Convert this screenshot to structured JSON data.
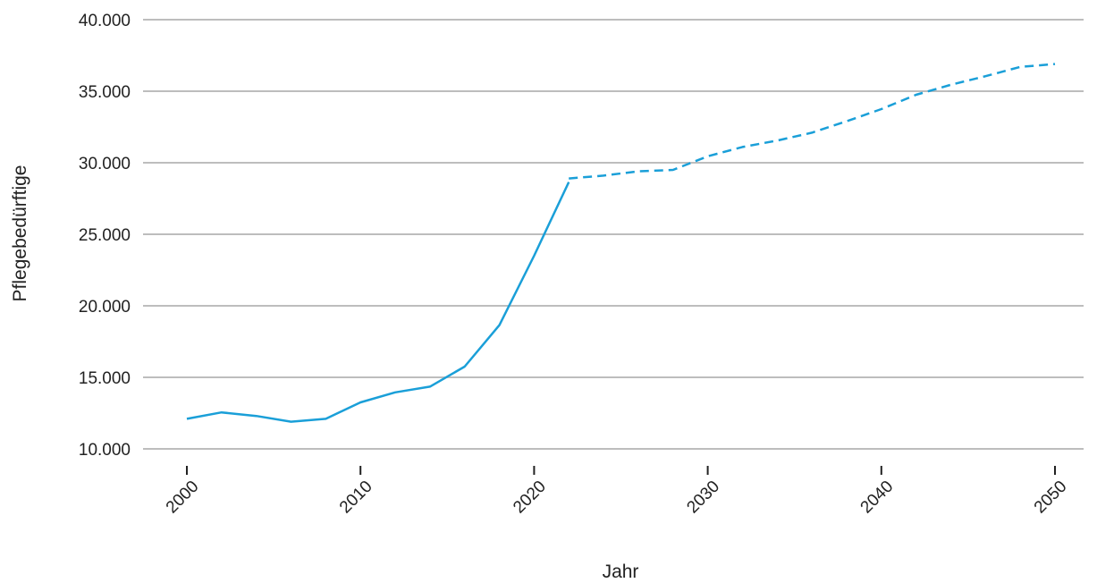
{
  "chart_data": {
    "type": "line",
    "title": "",
    "xlabel": "Jahr",
    "ylabel": "Pflegebedürftige",
    "xlim": [
      2000,
      2050
    ],
    "ylim": [
      10000,
      40000
    ],
    "x_ticks": [
      2000,
      2010,
      2020,
      2030,
      2040,
      2050
    ],
    "x_tick_labels": [
      "2000",
      "2010",
      "2020",
      "2030",
      "2040",
      "2050"
    ],
    "y_ticks": [
      10000,
      15000,
      20000,
      25000,
      30000,
      35000,
      40000
    ],
    "y_tick_labels": [
      "10.000",
      "15.000",
      "20.000",
      "25.000",
      "30.000",
      "35.000",
      "40.000"
    ],
    "grid": "horizontal",
    "color": "#1a9fd8",
    "series": [
      {
        "style": "solid",
        "x": [
          2000,
          2002,
          2004,
          2006,
          2008,
          2010,
          2012,
          2014,
          2016,
          2018,
          2020,
          2022
        ],
        "y": [
          12100,
          12550,
          12300,
          11900,
          12100,
          13250,
          13950,
          14350,
          15750,
          18650,
          23500,
          28650
        ]
      },
      {
        "style": "dashed",
        "x": [
          2022,
          2024,
          2026,
          2028,
          2030,
          2032,
          2034,
          2036,
          2038,
          2040,
          2042,
          2044,
          2046,
          2048,
          2050
        ],
        "y": [
          28900,
          29100,
          29400,
          29500,
          30450,
          31100,
          31550,
          32100,
          32900,
          33750,
          34750,
          35450,
          36050,
          36700,
          36900
        ]
      }
    ]
  }
}
